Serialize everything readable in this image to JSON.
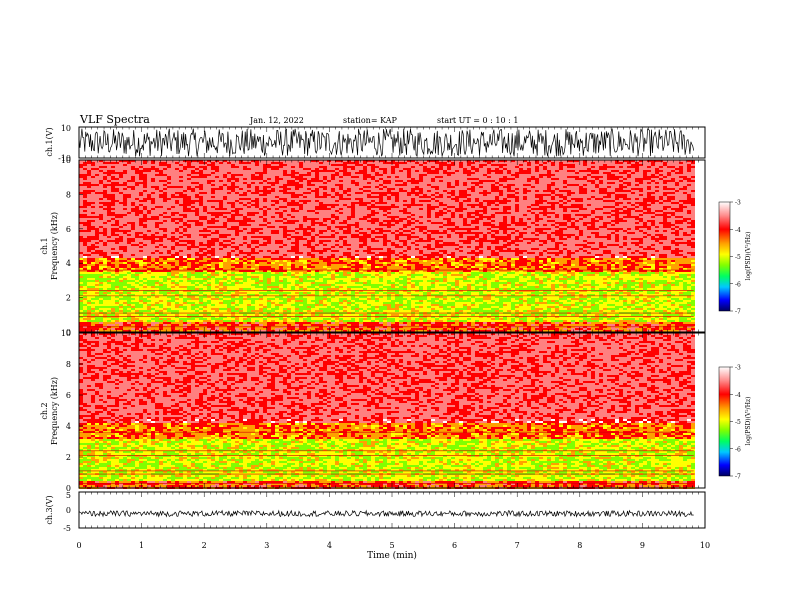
{
  "header": {
    "title": "VLF Spectra",
    "date": "Jan. 12, 2022",
    "station": "station= KAP",
    "start": "start  UT =   0 : 10 : 1"
  },
  "colors": {
    "trace": "#000000",
    "colormap": [
      "#000080",
      "#0000ff",
      "#00c8ff",
      "#00ff80",
      "#80ff00",
      "#ffff00",
      "#ffa000",
      "#ff0000",
      "#ff8080",
      "#ffffff"
    ]
  },
  "chart_data": [
    {
      "type": "line",
      "ylabel": "ch.1(V)",
      "ylim": [
        -10,
        10
      ],
      "yticks": [
        "10",
        "-10"
      ],
      "xlim": [
        0,
        10
      ],
      "note": "dense noisy waveform spanning roughly -9 to 10 V"
    },
    {
      "type": "heatmap",
      "ylabel_channel": "ch.1",
      "ylabel": "Frequency (kHz)",
      "ylim": [
        0,
        10
      ],
      "yticks": [
        "0",
        "2",
        "4",
        "6",
        "8",
        "10"
      ],
      "xlim": [
        0,
        10
      ],
      "colorbar": {
        "label": "log(PSD)(V²/Hz)",
        "range": [
          -7,
          -3
        ],
        "ticks": [
          "-3",
          "-4",
          "-5",
          "-6",
          "-7"
        ]
      },
      "bands": [
        {
          "f0": 4.4,
          "f1": 10,
          "level": -3.6
        },
        {
          "f0": 3.5,
          "f1": 4.4,
          "level": -4.2
        },
        {
          "f0": 0.6,
          "f1": 3.5,
          "level": -4.9
        },
        {
          "f0": 0,
          "f1": 0.6,
          "level": -4.0
        }
      ]
    },
    {
      "type": "heatmap",
      "ylabel_channel": "ch.2",
      "ylabel": "Frequency (kHz)",
      "ylim": [
        0,
        10
      ],
      "yticks": [
        "0",
        "2",
        "4",
        "6",
        "8",
        "10"
      ],
      "xlim": [
        0,
        10
      ],
      "colorbar": {
        "label": "log(PSD)(V²/Hz)",
        "range": [
          -7,
          -3
        ],
        "ticks": [
          "-3",
          "-4",
          "-5",
          "-6",
          "-7"
        ]
      },
      "bands": [
        {
          "f0": 4.2,
          "f1": 10,
          "level": -3.6
        },
        {
          "f0": 3.2,
          "f1": 4.2,
          "level": -4.2
        },
        {
          "f0": 0.5,
          "f1": 3.2,
          "level": -4.9
        },
        {
          "f0": 0,
          "f1": 0.5,
          "level": -4.0
        }
      ]
    },
    {
      "type": "line",
      "ylabel": "ch.3(V)",
      "ylim": [
        -5,
        5
      ],
      "yticks": [
        "5",
        "0",
        "-5"
      ],
      "xlim": [
        0,
        10
      ],
      "xlabel": "Time (min)",
      "xticks": [
        "0",
        "1",
        "2",
        "3",
        "4",
        "5",
        "6",
        "7",
        "8",
        "9",
        "10"
      ],
      "note": "thin band around -1 V"
    }
  ]
}
